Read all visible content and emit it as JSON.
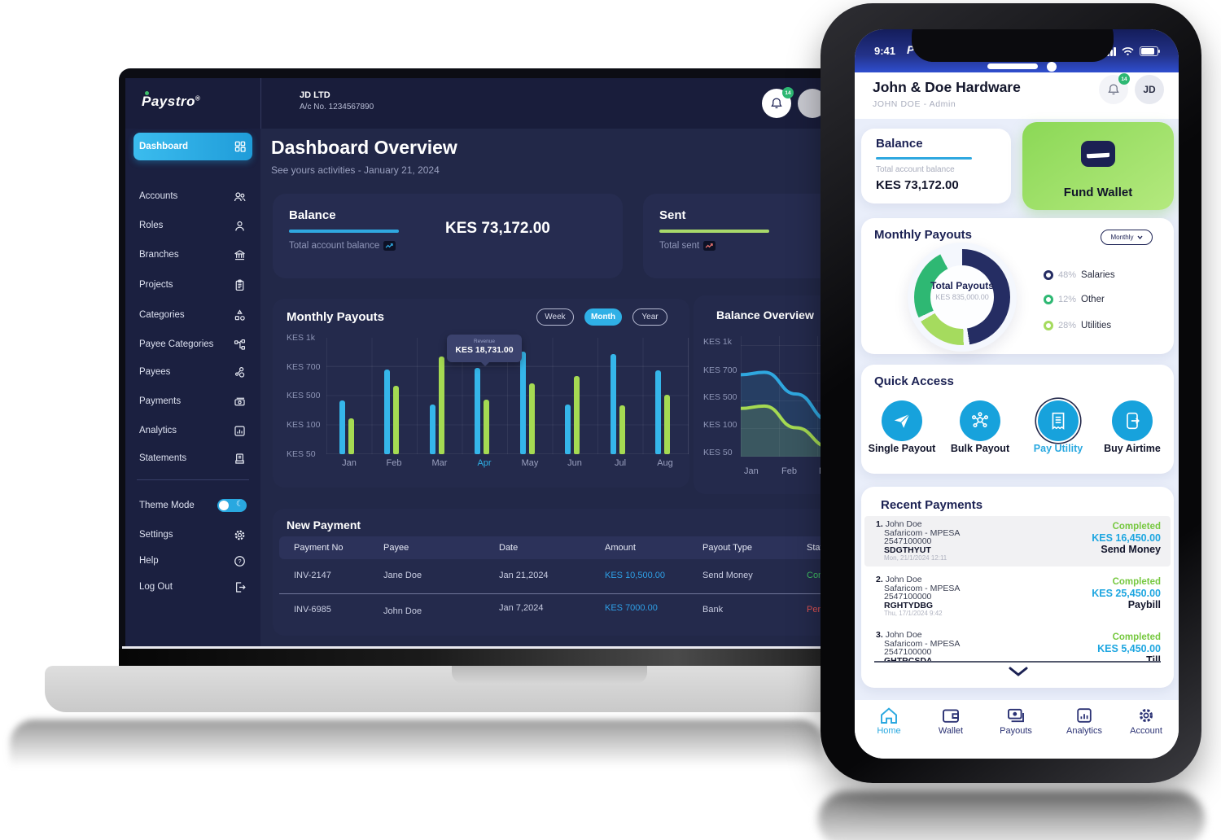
{
  "colors": {
    "accent_blue": "#29a8e0",
    "bar_green": "#a5da52",
    "navy": "#1b2153",
    "completed_green": "#76c83f",
    "pending_red": "#e05252",
    "amount_blue": "#1da6e0",
    "fund_green": "#9ade62"
  },
  "laptop": {
    "logo": {
      "text": "Paystro",
      "reg": "®"
    },
    "topbar": {
      "company": "JD LTD",
      "account_no": "A/c No. 1234567890",
      "bell_badge": "14"
    },
    "sidebar": {
      "items": [
        {
          "label": "Dashboard",
          "icon": "dashboard-grid"
        },
        {
          "label": "Accounts",
          "icon": "users"
        },
        {
          "label": "Roles",
          "icon": "user"
        },
        {
          "label": "Branches",
          "icon": "bank"
        },
        {
          "label": "Projects",
          "icon": "clipboard"
        },
        {
          "label": "Categories",
          "icon": "shapes"
        },
        {
          "label": "Payee Categories",
          "icon": "org-chart"
        },
        {
          "label": "Payees",
          "icon": "nodes"
        },
        {
          "label": "Payments",
          "icon": "banknote"
        },
        {
          "label": "Analytics",
          "icon": "chart-box"
        },
        {
          "label": "Statements",
          "icon": "statement"
        }
      ],
      "theme_label": "Theme Mode",
      "footer": [
        {
          "label": "Settings",
          "icon": "gear"
        },
        {
          "label": "Help",
          "icon": "help"
        },
        {
          "label": "Log Out",
          "icon": "logout"
        }
      ]
    },
    "page_title": "Dashboard Overview",
    "page_subtitle": "See yours activities - January 21, 2024",
    "balance_card": {
      "title": "Balance",
      "caption": "Total account balance",
      "amount": "KES 73,172.00"
    },
    "sent_card": {
      "title": "Sent",
      "caption": "Total sent"
    },
    "payouts": {
      "title": "Monthly Payouts",
      "filters": [
        "Week",
        "Month",
        "Year"
      ],
      "active_filter": "Month"
    },
    "balance_overview": {
      "title": "Balance Overview"
    },
    "table": {
      "title": "New Payment",
      "columns": [
        "Payment No",
        "Payee",
        "Date",
        "Amount",
        "Payout Type",
        "Status"
      ],
      "rows": [
        {
          "no": "INV-2147",
          "payee": "Jane Doe",
          "date": "Jan 21,2024",
          "amount": "KES 10,500.00",
          "type": "Send Money",
          "status": "Completed"
        },
        {
          "no": "INV-6985",
          "payee": "John Doe",
          "date": "Jan 7,2024",
          "amount": "KES 7000.00",
          "type": "Bank",
          "status": "Pending"
        }
      ]
    }
  },
  "phone": {
    "status": {
      "time": "9:41",
      "logo": "P"
    },
    "header": {
      "business": "John & Doe Hardware",
      "user": "JOHN DOE - Admin",
      "avatar": "JD",
      "bell_badge": "14"
    },
    "balance_card": {
      "title": "Balance",
      "caption": "Total account balance",
      "amount": "KES 73,172.00"
    },
    "fund_wallet": {
      "label": "Fund Wallet"
    },
    "payouts": {
      "title": "Monthly Payouts",
      "dropdown": "Monthly",
      "center_title": "Total Payouts",
      "center_value": "KES 835,000.00",
      "legend": [
        {
          "pct": "48%",
          "label": "Salaries"
        },
        {
          "pct": "12%",
          "label": "Other"
        },
        {
          "pct": "28%",
          "label": "Utilities"
        }
      ]
    },
    "quick_access": {
      "title": "Quick Access",
      "items": [
        {
          "label": "Single Payout",
          "icon": "paper-plane"
        },
        {
          "label": "Bulk Payout",
          "icon": "hub"
        },
        {
          "label": "Pay Utility",
          "icon": "receipt"
        },
        {
          "label": "Buy Airtime",
          "icon": "phone-arrow"
        }
      ]
    },
    "recent": {
      "title": "Recent Payments",
      "rows": [
        {
          "num": "1.",
          "name": "John Doe",
          "channel": "Safaricom - MPESA",
          "account": "2547100000",
          "ref": "SDGTHYUT",
          "date": "Mon, 21/1/2024 12:11",
          "status": "Completed",
          "amount": "KES 16,450.00",
          "type": "Send Money"
        },
        {
          "num": "2.",
          "name": "John Doe",
          "channel": "Safaricom - MPESA",
          "account": "2547100000",
          "ref": "RGHTYDBG",
          "date": "Thu, 17/1/2024 9:42",
          "status": "Completed",
          "amount": "KES 25,450.00",
          "type": "Paybill"
        },
        {
          "num": "3.",
          "name": "John Doe",
          "channel": "Safaricom - MPESA",
          "account": "2547100000",
          "ref": "GHTRCSDA",
          "date": "",
          "status": "Completed",
          "amount": "KES 5,450.00",
          "type": "Till"
        }
      ]
    },
    "nav": [
      {
        "label": "Home",
        "icon": "home"
      },
      {
        "label": "Wallet",
        "icon": "wallet"
      },
      {
        "label": "Payouts",
        "icon": "payouts"
      },
      {
        "label": "Analytics",
        "icon": "analytics"
      },
      {
        "label": "Account",
        "icon": "gear"
      }
    ]
  },
  "chart_data": [
    {
      "type": "bar",
      "title": "Monthly Payouts",
      "categories": [
        "Jan",
        "Feb",
        "Mar",
        "Apr",
        "May",
        "Jun",
        "Jul",
        "Aug"
      ],
      "ytick_labels": [
        "KES 1k",
        "KES 700",
        "KES 500",
        "KES 100",
        "KES 50"
      ],
      "series": [
        {
          "name": "payouts-blue",
          "color": "#35b6ea",
          "values_pct": [
            46,
            73,
            43,
            74,
            88,
            43,
            86,
            72
          ]
        },
        {
          "name": "payouts-green",
          "color": "#a5da52",
          "values_pct": [
            31,
            59,
            84,
            47,
            61,
            67,
            42,
            51
          ]
        }
      ],
      "highlight_category": "Apr",
      "tooltip": {
        "label": "Revenue",
        "value": "KES 18,731.00",
        "category": "Apr"
      },
      "legend_position": "none",
      "grid": true
    },
    {
      "type": "line",
      "title": "Balance Overview",
      "categories_visible": [
        "Jan",
        "Feb",
        "Mar"
      ],
      "ytick_labels": [
        "KES 1k",
        "KES 700",
        "KES 500",
        "KES 100",
        "KES 50"
      ],
      "series": [
        {
          "name": "balance-blue",
          "color": "#2fa8e0",
          "points_pct": [
            [
              0,
              68
            ],
            [
              12,
              70
            ],
            [
              28,
              52
            ],
            [
              45,
              30
            ],
            [
              60,
              28
            ],
            [
              75,
              44
            ],
            [
              90,
              58
            ],
            [
              100,
              50
            ]
          ]
        },
        {
          "name": "balance-green",
          "color": "#a5da52",
          "points_pct": [
            [
              0,
              40
            ],
            [
              12,
              42
            ],
            [
              28,
              24
            ],
            [
              45,
              8
            ],
            [
              55,
              10
            ],
            [
              72,
              28
            ],
            [
              88,
              42
            ],
            [
              100,
              34
            ]
          ]
        }
      ],
      "grid": true
    },
    {
      "type": "pie",
      "title": "Monthly Payouts (mobile donut)",
      "center_label": "Total Payouts",
      "center_value": "KES 835,000.00",
      "slices": [
        {
          "label": "Salaries",
          "pct": 48,
          "color": "#252d63",
          "arc": [
            0,
            47.5
          ]
        },
        {
          "label": "Utilities",
          "pct": 28,
          "color": "#a5db5e",
          "arc": [
            49.5,
            66.5
          ]
        },
        {
          "label": "Other",
          "pct": 12,
          "color": "#2eb873",
          "arc": [
            68,
            92.5
          ]
        }
      ]
    }
  ]
}
